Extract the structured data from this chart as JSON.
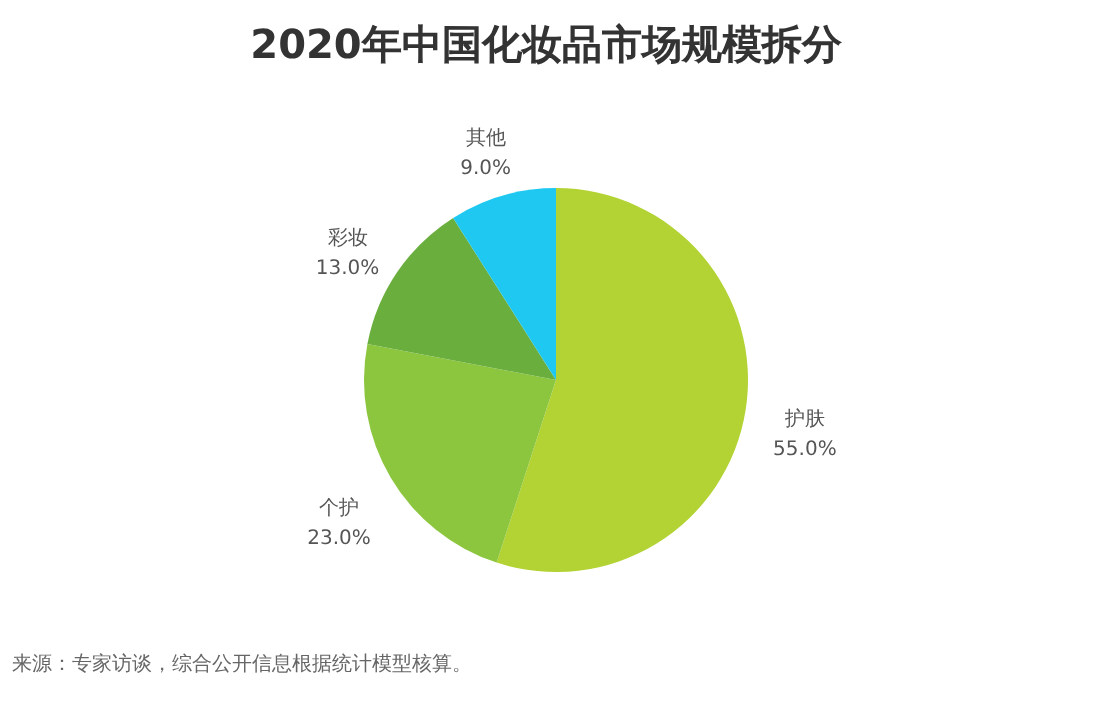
{
  "chart_data": {
    "type": "pie",
    "title": "2020年中国化妆品市场规模拆分",
    "categories": [
      "护肤",
      "个护",
      "彩妆",
      "其他"
    ],
    "values": [
      55.0,
      23.0,
      13.0,
      9.0
    ],
    "value_labels": [
      "55.0%",
      "23.0%",
      "13.0%",
      "9.0%"
    ],
    "colors": [
      "#b3d334",
      "#8cc63f",
      "#6aaf3d",
      "#1ec8f0"
    ],
    "annotations": [
      "来源：专家访谈，综合公开信息根据统计模型核算。"
    ]
  }
}
